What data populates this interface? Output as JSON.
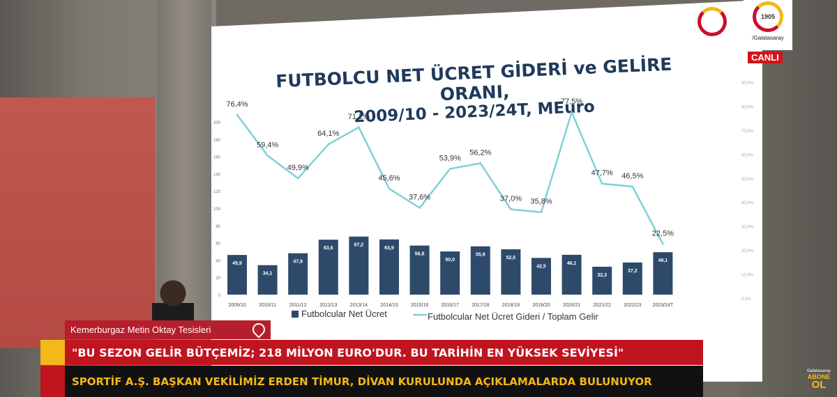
{
  "chart_data": {
    "type": "bar",
    "title_line1": "FUTBOLCU NET ÜCRET GİDERİ ve GELİRE ORANI,",
    "title_line2": "2009/10 - 2023/24T, MEuro",
    "categories": [
      "2009/10",
      "2010/11",
      "2011/12",
      "2012/13",
      "2013/14",
      "2014/15",
      "2015/16",
      "2016/17",
      "2017/18",
      "2018/19",
      "2019/20",
      "2020/21",
      "2021/22",
      "2022/23",
      "2023/24T"
    ],
    "series": [
      {
        "name": "Futbolcular Net Ücret",
        "type": "bar",
        "values": [
          45.9,
          34.1,
          47.9,
          63.6,
          67.2,
          63.9,
          56.8,
          50.0,
          55.9,
          52.5,
          42.5,
          46.1,
          32.3,
          37.2,
          49.1
        ],
        "labels": [
          "45,9",
          "34,1",
          "47,9",
          "63,6",
          "67,2",
          "63,9",
          "56,8",
          "50,0",
          "55,9",
          "52,5",
          "42,5",
          "46,1",
          "32,3",
          "37,2",
          "49,1"
        ],
        "color": "#2e4a6b"
      },
      {
        "name": "Futbolcular Net Ücret Gideri / Toplam Gelir",
        "type": "line",
        "values": [
          76.4,
          59.4,
          49.9,
          64.1,
          71.2,
          45.6,
          37.6,
          53.9,
          56.2,
          37.0,
          35.8,
          77.5,
          47.7,
          46.5,
          22.5
        ],
        "labels": [
          "76,4%",
          "59,4%",
          "49,9%",
          "64,1%",
          "71,2%",
          "45,6%",
          "37,6%",
          "53,9%",
          "56,2%",
          "37,0%",
          "35,8%",
          "77,5%",
          "47,7%",
          "46,5%",
          "22,5%"
        ],
        "color": "#7fd0d6"
      }
    ],
    "left_axis": {
      "ticks": [
        "0",
        "20",
        "40",
        "60",
        "80",
        "100",
        "120",
        "140",
        "160",
        "180",
        "200"
      ],
      "ylim": [
        0,
        200
      ]
    },
    "right_axis": {
      "ticks": [
        "0,0%",
        "10,0%",
        "20,0%",
        "30,0%",
        "40,0%",
        "50,0%",
        "60,0%",
        "70,0%",
        "80,0%",
        "90,0%"
      ],
      "ylim": [
        0,
        90
      ]
    },
    "legend_position": "bottom"
  },
  "logo": {
    "year": "1905",
    "channel": "/Galatasaray",
    "live": "CANLI"
  },
  "lower_third": {
    "location": "Kemerburgaz Metin Oktay Tesisleri",
    "headline": "\"BU SEZON GELİR BÜTÇEMİZ; 218 MİLYON EURO'DUR. BU TARİHİN EN YÜKSEK SEVİYESİ\"",
    "subtitle": "SPORTİF A.Ş. BAŞKAN VEKİLİMİZ ERDEN TİMUR, DİVAN KURULUNDA AÇIKLAMALARDA BULUNUYOR"
  },
  "subscribe": {
    "line1": "Galatasaray",
    "line2": "ABONE",
    "line3": "OL"
  },
  "colors": {
    "accent_red": "#c0141f",
    "accent_yellow": "#f3b81a"
  }
}
